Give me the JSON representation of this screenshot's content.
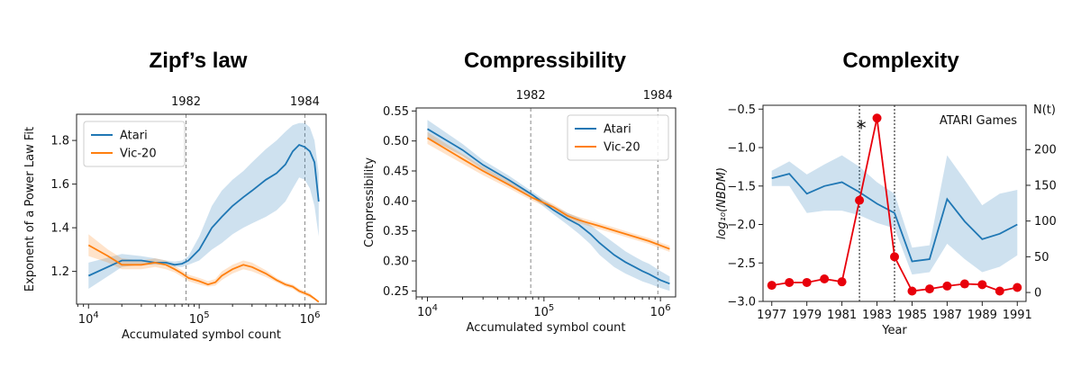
{
  "chart_data": [
    {
      "type": "line",
      "title": "Zipf’s law",
      "xlabel": "Accumulated symbol count",
      "ylabel": "Exponent of a Power Law Fit",
      "xscale": "log",
      "xlim": [
        7800,
        1400000
      ],
      "ylim": [
        1.05,
        1.92
      ],
      "xticks": [
        10000,
        100000,
        1000000
      ],
      "xtick_labels": [
        "10^4",
        "10^5",
        "10^6"
      ],
      "yticks": [
        1.2,
        1.4,
        1.6,
        1.8
      ],
      "ytick_labels": [
        "1.2",
        "1.4",
        "1.6",
        "1.8"
      ],
      "vlines": [
        {
          "x": 76000,
          "label": "1982"
        },
        {
          "x": 900000,
          "label": "1984"
        }
      ],
      "legend": "top-left",
      "series": [
        {
          "name": "Atari",
          "color": "#1f77b4",
          "x": [
            10000,
            20000,
            30000,
            40000,
            50000,
            60000,
            70000,
            80000,
            100000,
            130000,
            160000,
            200000,
            250000,
            300000,
            400000,
            500000,
            600000,
            700000,
            800000,
            900000,
            1000000,
            1100000,
            1200000
          ],
          "y": [
            1.18,
            1.25,
            1.25,
            1.24,
            1.24,
            1.23,
            1.235,
            1.25,
            1.3,
            1.4,
            1.45,
            1.5,
            1.54,
            1.57,
            1.62,
            1.65,
            1.69,
            1.75,
            1.78,
            1.77,
            1.75,
            1.7,
            1.52
          ],
          "lower": [
            1.12,
            1.22,
            1.23,
            1.23,
            1.23,
            1.22,
            1.22,
            1.23,
            1.25,
            1.3,
            1.33,
            1.37,
            1.4,
            1.42,
            1.45,
            1.48,
            1.52,
            1.58,
            1.63,
            1.62,
            1.58,
            1.5,
            1.36
          ],
          "upper": [
            1.24,
            1.28,
            1.27,
            1.26,
            1.25,
            1.245,
            1.25,
            1.27,
            1.36,
            1.5,
            1.57,
            1.62,
            1.66,
            1.7,
            1.76,
            1.8,
            1.84,
            1.87,
            1.88,
            1.88,
            1.86,
            1.8,
            1.65
          ]
        },
        {
          "name": "Vic-20",
          "color": "#ff7f0e",
          "x": [
            10000,
            15000,
            20000,
            30000,
            40000,
            50000,
            60000,
            70000,
            80000,
            100000,
            120000,
            140000,
            160000,
            200000,
            250000,
            300000,
            400000,
            500000,
            600000,
            700000,
            800000,
            900000,
            1000000,
            1100000,
            1200000
          ],
          "y": [
            1.32,
            1.27,
            1.23,
            1.23,
            1.24,
            1.23,
            1.21,
            1.19,
            1.17,
            1.155,
            1.14,
            1.15,
            1.18,
            1.21,
            1.23,
            1.22,
            1.19,
            1.16,
            1.14,
            1.13,
            1.11,
            1.1,
            1.09,
            1.075,
            1.06
          ],
          "lower": [
            1.27,
            1.24,
            1.21,
            1.21,
            1.22,
            1.21,
            1.195,
            1.175,
            1.155,
            1.14,
            1.13,
            1.135,
            1.16,
            1.19,
            1.21,
            1.2,
            1.175,
            1.15,
            1.13,
            1.12,
            1.1,
            1.09,
            1.08,
            1.07,
            1.055
          ],
          "upper": [
            1.37,
            1.3,
            1.26,
            1.25,
            1.26,
            1.25,
            1.225,
            1.205,
            1.185,
            1.17,
            1.155,
            1.165,
            1.2,
            1.23,
            1.25,
            1.24,
            1.205,
            1.17,
            1.15,
            1.14,
            1.12,
            1.11,
            1.1,
            1.08,
            1.065
          ]
        }
      ]
    },
    {
      "type": "line",
      "title": "Compressibility",
      "xlabel": "Accumulated symbol count",
      "ylabel": "Compressibility",
      "xscale": "log",
      "xlim": [
        8000,
        1350000
      ],
      "ylim": [
        0.24,
        0.555
      ],
      "xticks": [
        10000,
        100000,
        1000000
      ],
      "xtick_labels": [
        "10^4",
        "10^5",
        "10^6"
      ],
      "yticks": [
        0.25,
        0.3,
        0.35,
        0.4,
        0.45,
        0.5,
        0.55
      ],
      "ytick_labels": [
        "0.25",
        "0.30",
        "0.35",
        "0.40",
        "0.45",
        "0.50",
        "0.55"
      ],
      "vlines": [
        {
          "x": 77000,
          "label": "1982"
        },
        {
          "x": 950000,
          "label": "1984"
        }
      ],
      "legend": "top-right",
      "series": [
        {
          "name": "Atari",
          "color": "#1f77b4",
          "x": [
            10000,
            20000,
            30000,
            50000,
            80000,
            120000,
            160000,
            200000,
            250000,
            300000,
            400000,
            500000,
            600000,
            700000,
            800000,
            1000000,
            1200000
          ],
          "y": [
            0.52,
            0.485,
            0.46,
            0.435,
            0.41,
            0.385,
            0.37,
            0.36,
            0.345,
            0.33,
            0.31,
            0.298,
            0.29,
            0.283,
            0.278,
            0.268,
            0.262
          ],
          "lower": [
            0.505,
            0.475,
            0.452,
            0.428,
            0.405,
            0.378,
            0.36,
            0.345,
            0.328,
            0.31,
            0.29,
            0.279,
            0.272,
            0.266,
            0.262,
            0.255,
            0.25
          ],
          "upper": [
            0.535,
            0.495,
            0.468,
            0.442,
            0.415,
            0.392,
            0.38,
            0.372,
            0.36,
            0.348,
            0.33,
            0.316,
            0.307,
            0.3,
            0.295,
            0.283,
            0.274
          ]
        },
        {
          "name": "Vic-20",
          "color": "#ff7f0e",
          "x": [
            10000,
            20000,
            30000,
            50000,
            80000,
            120000,
            160000,
            200000,
            300000,
            500000,
            800000,
            1200000
          ],
          "y": [
            0.505,
            0.47,
            0.45,
            0.427,
            0.405,
            0.39,
            0.375,
            0.368,
            0.358,
            0.345,
            0.333,
            0.32
          ],
          "lower": [
            0.495,
            0.462,
            0.443,
            0.421,
            0.4,
            0.385,
            0.37,
            0.363,
            0.353,
            0.34,
            0.328,
            0.315
          ],
          "upper": [
            0.515,
            0.478,
            0.457,
            0.433,
            0.41,
            0.395,
            0.38,
            0.373,
            0.363,
            0.35,
            0.338,
            0.325
          ]
        }
      ]
    },
    {
      "type": "line",
      "title": "Complexity",
      "xlabel": "Year",
      "ylabel": "log₁₀(NBDM)",
      "ylabel_right": "N(t)",
      "annotation": "ATARI Games",
      "star_label": "*",
      "xlim": [
        1976.5,
        1991.5
      ],
      "ylim": [
        -3.0,
        -0.45
      ],
      "ylim_right": [
        -12.5,
        262
      ],
      "xticks": [
        1977,
        1979,
        1981,
        1983,
        1985,
        1987,
        1989,
        1991
      ],
      "xtick_labels": [
        "1977",
        "1979",
        "1981",
        "1983",
        "1985",
        "1987",
        "1989",
        "1991"
      ],
      "yticks": [
        -3.0,
        -2.5,
        -2.0,
        -1.5,
        -1.0,
        -0.5
      ],
      "ytick_labels": [
        "−3.0",
        "−2.5",
        "−2.0",
        "−1.5",
        "−1.0",
        "−0.5"
      ],
      "yticks_right": [
        0,
        50,
        100,
        150,
        200
      ],
      "ytick_labels_right": [
        "0",
        "50",
        "100",
        "150",
        "200"
      ],
      "vlines": [
        {
          "x": 1982
        },
        {
          "x": 1984
        }
      ],
      "series": [
        {
          "name": "Complexity",
          "color": "#1f77b4",
          "x": [
            1977,
            1978,
            1979,
            1980,
            1981,
            1982,
            1983,
            1984,
            1985,
            1986,
            1987,
            1988,
            1989,
            1990,
            1991
          ],
          "y": [
            -1.4,
            -1.34,
            -1.6,
            -1.5,
            -1.45,
            -1.58,
            -1.73,
            -1.85,
            -2.48,
            -2.45,
            -1.67,
            -1.96,
            -2.19,
            -2.12,
            -2.0
          ],
          "lower": [
            -1.5,
            -1.5,
            -1.85,
            -1.82,
            -1.82,
            -1.88,
            -1.98,
            -2.05,
            -2.65,
            -2.62,
            -2.25,
            -2.45,
            -2.62,
            -2.55,
            -2.4
          ],
          "upper": [
            -1.3,
            -1.18,
            -1.35,
            -1.22,
            -1.1,
            -1.25,
            -1.45,
            -1.6,
            -2.3,
            -2.27,
            -1.1,
            -1.42,
            -1.75,
            -1.6,
            -1.55
          ]
        },
        {
          "name": "N(t)",
          "color": "#e8000b",
          "axis": "right",
          "x": [
            1977,
            1978,
            1979,
            1980,
            1981,
            1982,
            1983,
            1984,
            1985,
            1986,
            1987,
            1988,
            1989,
            1990,
            1991
          ],
          "y": [
            10,
            14,
            14,
            19,
            15,
            129,
            244,
            50,
            2,
            5,
            9,
            12,
            11,
            2,
            7
          ]
        }
      ]
    }
  ]
}
